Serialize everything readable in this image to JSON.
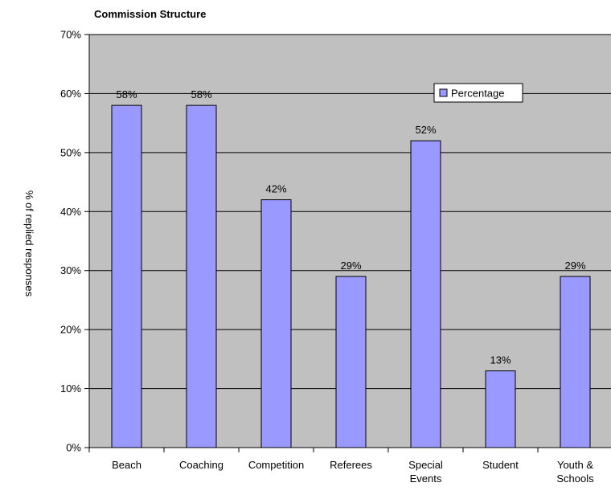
{
  "chart_data": {
    "type": "bar",
    "title": "Commission Structure",
    "xlabel": "",
    "ylabel": "% of replied responses",
    "categories": [
      [
        "Beach"
      ],
      [
        "Coaching"
      ],
      [
        "Competition"
      ],
      [
        "Referees"
      ],
      [
        "Special",
        "Events"
      ],
      [
        "Student"
      ],
      [
        "Youth &",
        "Schools"
      ]
    ],
    "series": [
      {
        "name": "Percentage",
        "values": [
          58,
          58,
          42,
          29,
          52,
          13,
          29
        ],
        "data_labels": [
          "58%",
          "58%",
          "42%",
          "29%",
          "52%",
          "13%",
          "29%"
        ]
      }
    ],
    "ylim": [
      0,
      70
    ],
    "yticks": [
      0,
      10,
      20,
      30,
      40,
      50,
      60,
      70
    ],
    "ytick_labels": [
      "0%",
      "10%",
      "20%",
      "30%",
      "40%",
      "50%",
      "60%",
      "70%"
    ],
    "grid": true,
    "legend_position": "top-right",
    "colors": {
      "plot_background": "#c0c0c0",
      "bar_fill": "#9999ff",
      "bar_stroke": "#000000",
      "gridline": "#000000"
    }
  }
}
